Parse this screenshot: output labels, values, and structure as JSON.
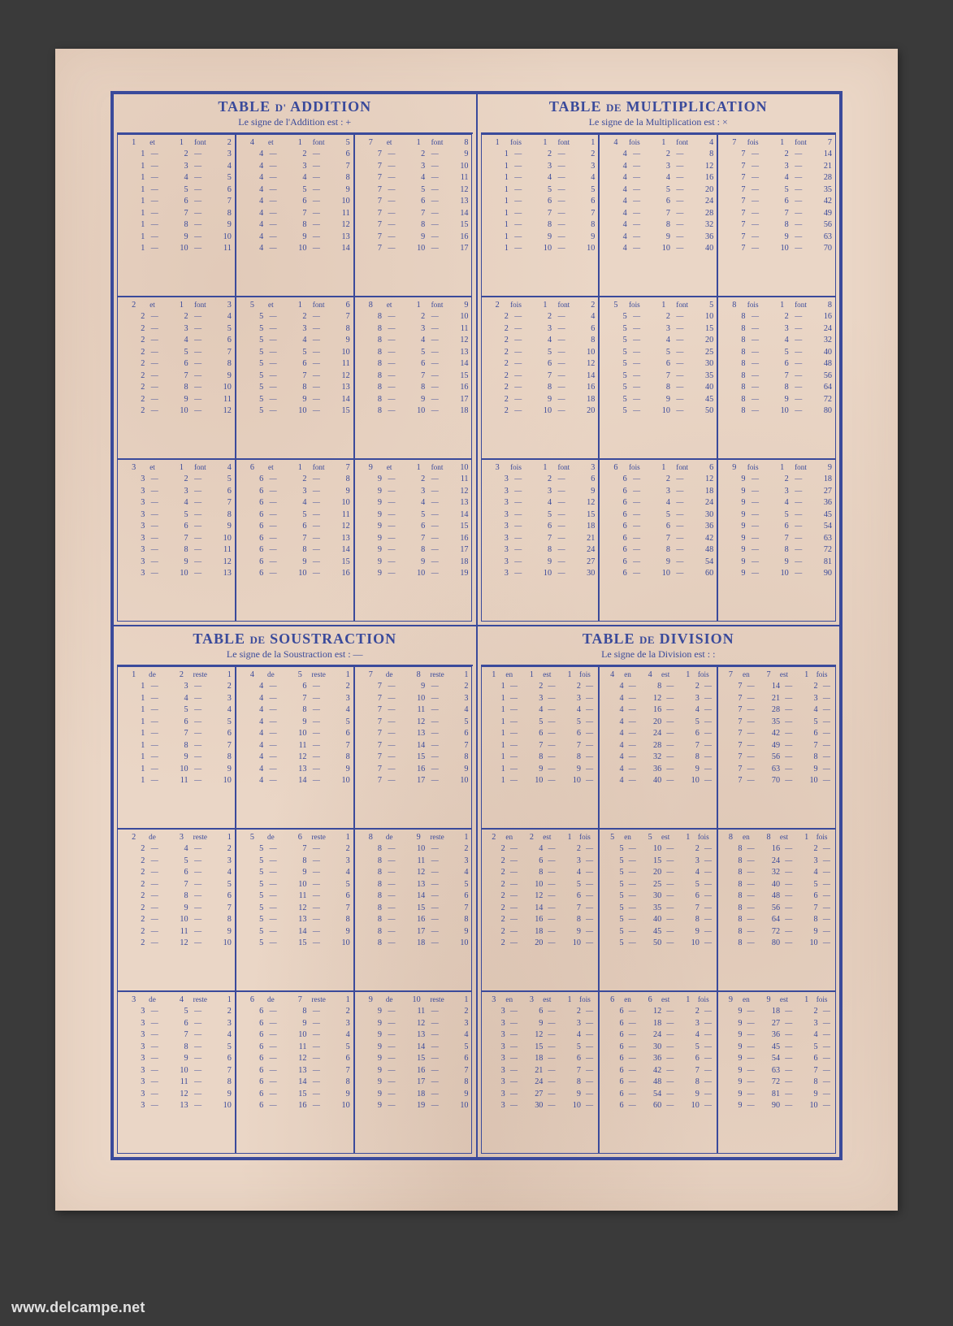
{
  "colors": {
    "paper": "#ead6c6",
    "ink": "#3a4a9b",
    "page_bg": "#3a3a3a"
  },
  "watermark": "www.delcampe.net",
  "quadrants": [
    {
      "title_pre": "TABLE",
      "title_small": "D'",
      "title_post": "ADDITION",
      "subtitle": "Le signe de l'Addition est : +",
      "op": "addition",
      "first_word": "et",
      "rest_word": "—",
      "result_first": "font",
      "result_rest": "—",
      "bases": [
        1,
        2,
        3,
        4,
        5,
        6,
        7,
        8,
        9
      ]
    },
    {
      "title_pre": "TABLE",
      "title_small": "DE",
      "title_post": "MULTIPLICATION",
      "subtitle": "Le signe de la Multiplication est : ×",
      "op": "multiplication",
      "first_word": "fois",
      "rest_word": "—",
      "result_first": "font",
      "result_rest": "—",
      "bases": [
        1,
        2,
        3,
        4,
        5,
        6,
        7,
        8,
        9
      ]
    },
    {
      "title_pre": "TABLE",
      "title_small": "DE",
      "title_post": "SOUSTRACTION",
      "subtitle": "Le signe de la Soustraction est : —",
      "op": "subtraction",
      "first_word": "de",
      "rest_word": "—",
      "result_first": "reste",
      "result_rest": "—",
      "bases": [
        1,
        2,
        3,
        4,
        5,
        6,
        7,
        8,
        9
      ]
    },
    {
      "title_pre": "TABLE",
      "title_small": "DE",
      "title_post": "DIVISION",
      "subtitle": "Le signe de la Division est : :",
      "op": "division",
      "first_word": "en",
      "rest_word": "—",
      "result_first": "est",
      "result_rest": "—",
      "result_suffix_first": "fois",
      "result_suffix_rest": "—",
      "bases": [
        1,
        2,
        3,
        4,
        5,
        6,
        7,
        8,
        9
      ]
    }
  ]
}
